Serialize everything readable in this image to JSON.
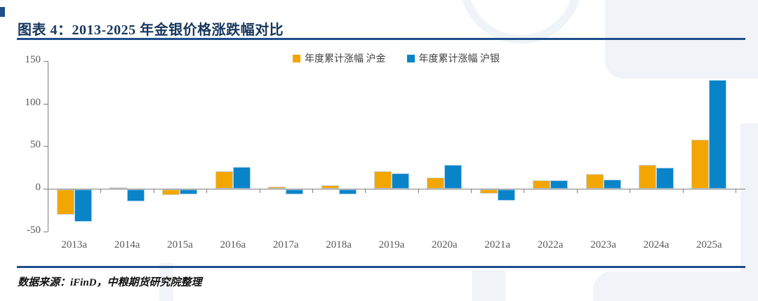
{
  "page": {
    "title": "图表 4：2013-2025 年金银价格涨跌幅对比",
    "source": "数据来源：iFinD，中粮期货研究院整理"
  },
  "colors": {
    "navy_text": "#17375E",
    "rule": "#1F4E8C",
    "gold": "#F3A600",
    "silver": "#0984C9",
    "axis": "#808080",
    "tick_label": "#595959",
    "watermark": "#F0F4F9"
  },
  "chart_data": {
    "type": "bar",
    "title": "图表 4：2013-2025 年金银价格涨跌幅对比",
    "categories": [
      "2013a",
      "2014a",
      "2015a",
      "2016a",
      "2017a",
      "2018a",
      "2019a",
      "2020a",
      "2021a",
      "2022a",
      "2023a",
      "2024a",
      "2025a"
    ],
    "series": [
      {
        "name": "年度累计涨幅 沪金",
        "color": "#F3A600",
        "values": [
          -30,
          1.5,
          -7,
          21,
          2.5,
          4,
          21,
          13.5,
          -5,
          9.5,
          17,
          28,
          58
        ]
      },
      {
        "name": "年度累计涨幅 沪银",
        "color": "#0984C9",
        "values": [
          -38,
          -14,
          -6,
          26,
          -6,
          -5.5,
          18.5,
          28,
          -13,
          10,
          11,
          25,
          128
        ]
      }
    ],
    "xlabel": "",
    "ylabel": "",
    "ylim": [
      -50,
      150
    ],
    "yticks": [
      150,
      100,
      50,
      0,
      -50
    ],
    "grid": false,
    "legend_position": "top-center"
  }
}
